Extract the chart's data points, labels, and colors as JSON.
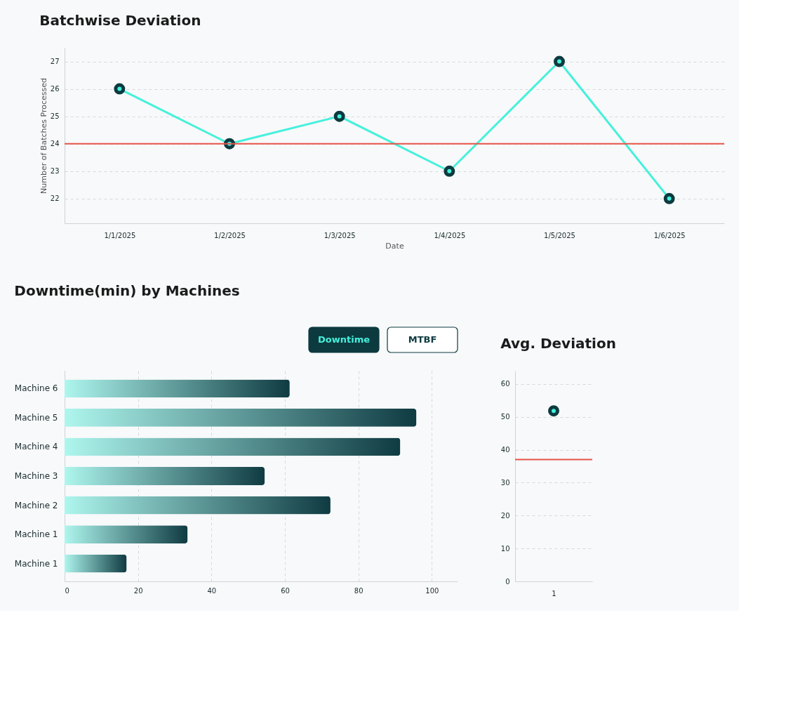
{
  "chart_data": [
    {
      "type": "line",
      "title": "Batchwise Deviation",
      "xlabel": "Date",
      "ylabel": "Number of Batches Processed",
      "categories": [
        "1/1/2025",
        "1/2/2025",
        "1/3/2025",
        "1/4/2025",
        "1/5/2025",
        "1/6/2025"
      ],
      "series": [
        {
          "color": "#46f0dc",
          "values": [
            26,
            24,
            25,
            23,
            27,
            22
          ]
        }
      ],
      "ylim": [
        21.1,
        27.5
      ],
      "yticks": [
        22,
        23,
        24,
        25,
        26,
        27
      ],
      "grid": "y",
      "marker": "circle",
      "line_style": "solid",
      "ref_lines": [
        {
          "axis": "y",
          "value": 24,
          "color": "#e8544a"
        }
      ]
    },
    {
      "type": "bar",
      "orientation": "horizontal",
      "title": "Downtime(min) by Machines",
      "categories": [
        "Machine 6",
        "Machine 5",
        "Machine 4",
        "Machine 3",
        "Machine 2",
        "Machine 1",
        "Machine 1"
      ],
      "series": [
        {
          "color": "#0f3b42",
          "values": [
            61.3,
            95.8,
            91.4,
            54.5,
            72.4,
            33.5,
            16.9
          ]
        }
      ],
      "xlim": [
        0,
        107
      ],
      "xticks": [
        0,
        20,
        40,
        60,
        80,
        100
      ],
      "grid": "x",
      "annotations": [
        "Downtime",
        "MTBF"
      ]
    },
    {
      "type": "scatter",
      "title": "Avg. Deviation",
      "categories": [
        "1"
      ],
      "series": [
        {
          "color": "#46f0dc",
          "values": [
            51.8
          ]
        }
      ],
      "ylim": [
        0,
        64
      ],
      "yticks": [
        0,
        10,
        20,
        30,
        40,
        50,
        60
      ],
      "grid": "y",
      "marker": "circle",
      "ref_lines": [
        {
          "axis": "y",
          "value": 37,
          "color": "#e8544a"
        }
      ]
    }
  ]
}
